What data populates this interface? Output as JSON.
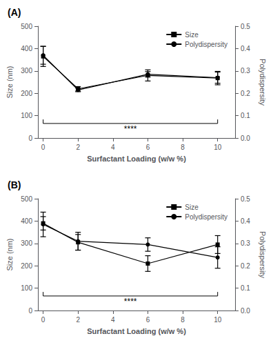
{
  "chart_data": [
    {
      "type": "line",
      "title": "(A)",
      "xlabel": "Surfactant Loading (w/w %)",
      "ylabel": "Size (nm)",
      "y2label": "Polydispersity",
      "x": [
        0,
        2,
        6,
        10
      ],
      "series": [
        {
          "name": "Size",
          "color": "black",
          "marker": "square",
          "values": [
            365,
            220,
            280,
            268
          ],
          "errors": [
            45,
            10,
            25,
            30
          ]
        },
        {
          "name": "Polydispersity",
          "color": "black",
          "marker": "circle",
          "axis": "y2",
          "values": [
            0.37,
            0.215,
            0.285,
            0.27
          ],
          "errors": [
            0.04,
            0.008,
            0.012,
            0.025
          ]
        }
      ],
      "xlim": [
        -0.3,
        11
      ],
      "xticks": [
        0,
        2,
        4,
        6,
        8,
        10
      ],
      "ylim": [
        0,
        500
      ],
      "yticks": [
        0,
        100,
        200,
        300,
        400,
        500
      ],
      "y2lim": [
        0.0,
        0.5
      ],
      "y2ticks": [
        {
          "value": 0.0,
          "label": "0.0"
        },
        0.1,
        0.2,
        0.3,
        0.4,
        0.5
      ],
      "grid": false,
      "legend": "upper right",
      "annotations": [
        {
          "text": "****",
          "x": 5,
          "y": 40,
          "color": "black",
          "bracket_x": [
            0,
            10
          ],
          "bracket_y": 65,
          "bracket_tick": 18
        }
      ]
    },
    {
      "type": "line",
      "title": "(B)",
      "xlabel": "Surfactant Loading (w/w %)",
      "ylabel": "Size (nm)",
      "y2label": "Polydispersity",
      "x": [
        0,
        2,
        6,
        10
      ],
      "series": [
        {
          "name": "Size",
          "color": "black",
          "marker": "square",
          "values": [
            390,
            305,
            210,
            295
          ],
          "errors": [
            30,
            35,
            35,
            40
          ]
        },
        {
          "name": "Polydispersity",
          "color": "black",
          "marker": "circle",
          "axis": "y2",
          "values": [
            0.385,
            0.31,
            0.295,
            0.237
          ],
          "errors": [
            0.055,
            0.04,
            0.03,
            0.048
          ]
        }
      ],
      "xlim": [
        -0.3,
        11
      ],
      "xticks": [
        0,
        2,
        4,
        6,
        8,
        10
      ],
      "ylim": [
        0,
        500
      ],
      "yticks": [
        0,
        100,
        200,
        300,
        400,
        500
      ],
      "y2lim": [
        0.0,
        0.5
      ],
      "y2ticks": [
        {
          "value": 0.0,
          "label": "0.0"
        },
        0.1,
        0.2,
        0.3,
        0.4,
        0.5
      ],
      "grid": false,
      "legend": "upper right",
      "annotations": [
        {
          "text": "****",
          "x": 5,
          "y": 40,
          "color": "black",
          "bracket_x": [
            0,
            10
          ],
          "bracket_y": 65,
          "bracket_tick": 18
        }
      ]
    }
  ]
}
